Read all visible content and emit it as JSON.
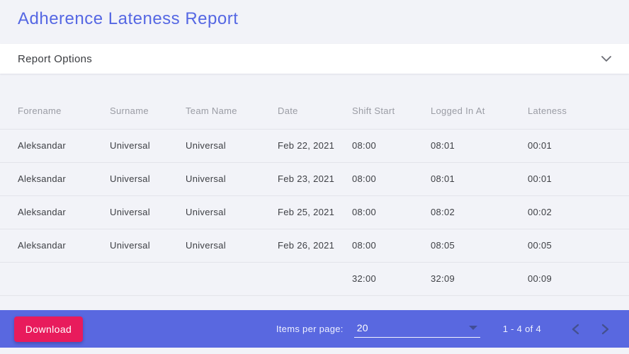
{
  "page": {
    "title": "Adherence Lateness Report",
    "background_color": "#f2f3f8",
    "accent_blue": "#5968e0",
    "accent_pink": "#e81b5c"
  },
  "report_options": {
    "label": "Report Options",
    "chevron_icon": "chevron-down"
  },
  "table": {
    "columns": [
      "Forename",
      "Surname",
      "Team Name",
      "Date",
      "Shift Start",
      "Logged In At",
      "Lateness"
    ],
    "rows": [
      [
        "Aleksandar",
        "Universal",
        "Universal",
        "Feb 22, 2021",
        "08:00",
        "08:01",
        "00:01"
      ],
      [
        "Aleksandar",
        "Universal",
        "Universal",
        "Feb 23, 2021",
        "08:00",
        "08:01",
        "00:01"
      ],
      [
        "Aleksandar",
        "Universal",
        "Universal",
        "Feb 25, 2021",
        "08:00",
        "08:02",
        "00:02"
      ],
      [
        "Aleksandar",
        "Universal",
        "Universal",
        "Feb 26, 2021",
        "08:00",
        "08:05",
        "00:05"
      ]
    ],
    "totals_row": [
      "",
      "",
      "",
      "",
      "32:00",
      "32:09",
      "00:09"
    ]
  },
  "footer": {
    "download_label": "Download",
    "items_per_page_label": "Items per page:",
    "items_per_page_value": "20",
    "range_label": "1 - 4 of 4",
    "prev_icon": "chevron-left",
    "next_icon": "chevron-right"
  }
}
